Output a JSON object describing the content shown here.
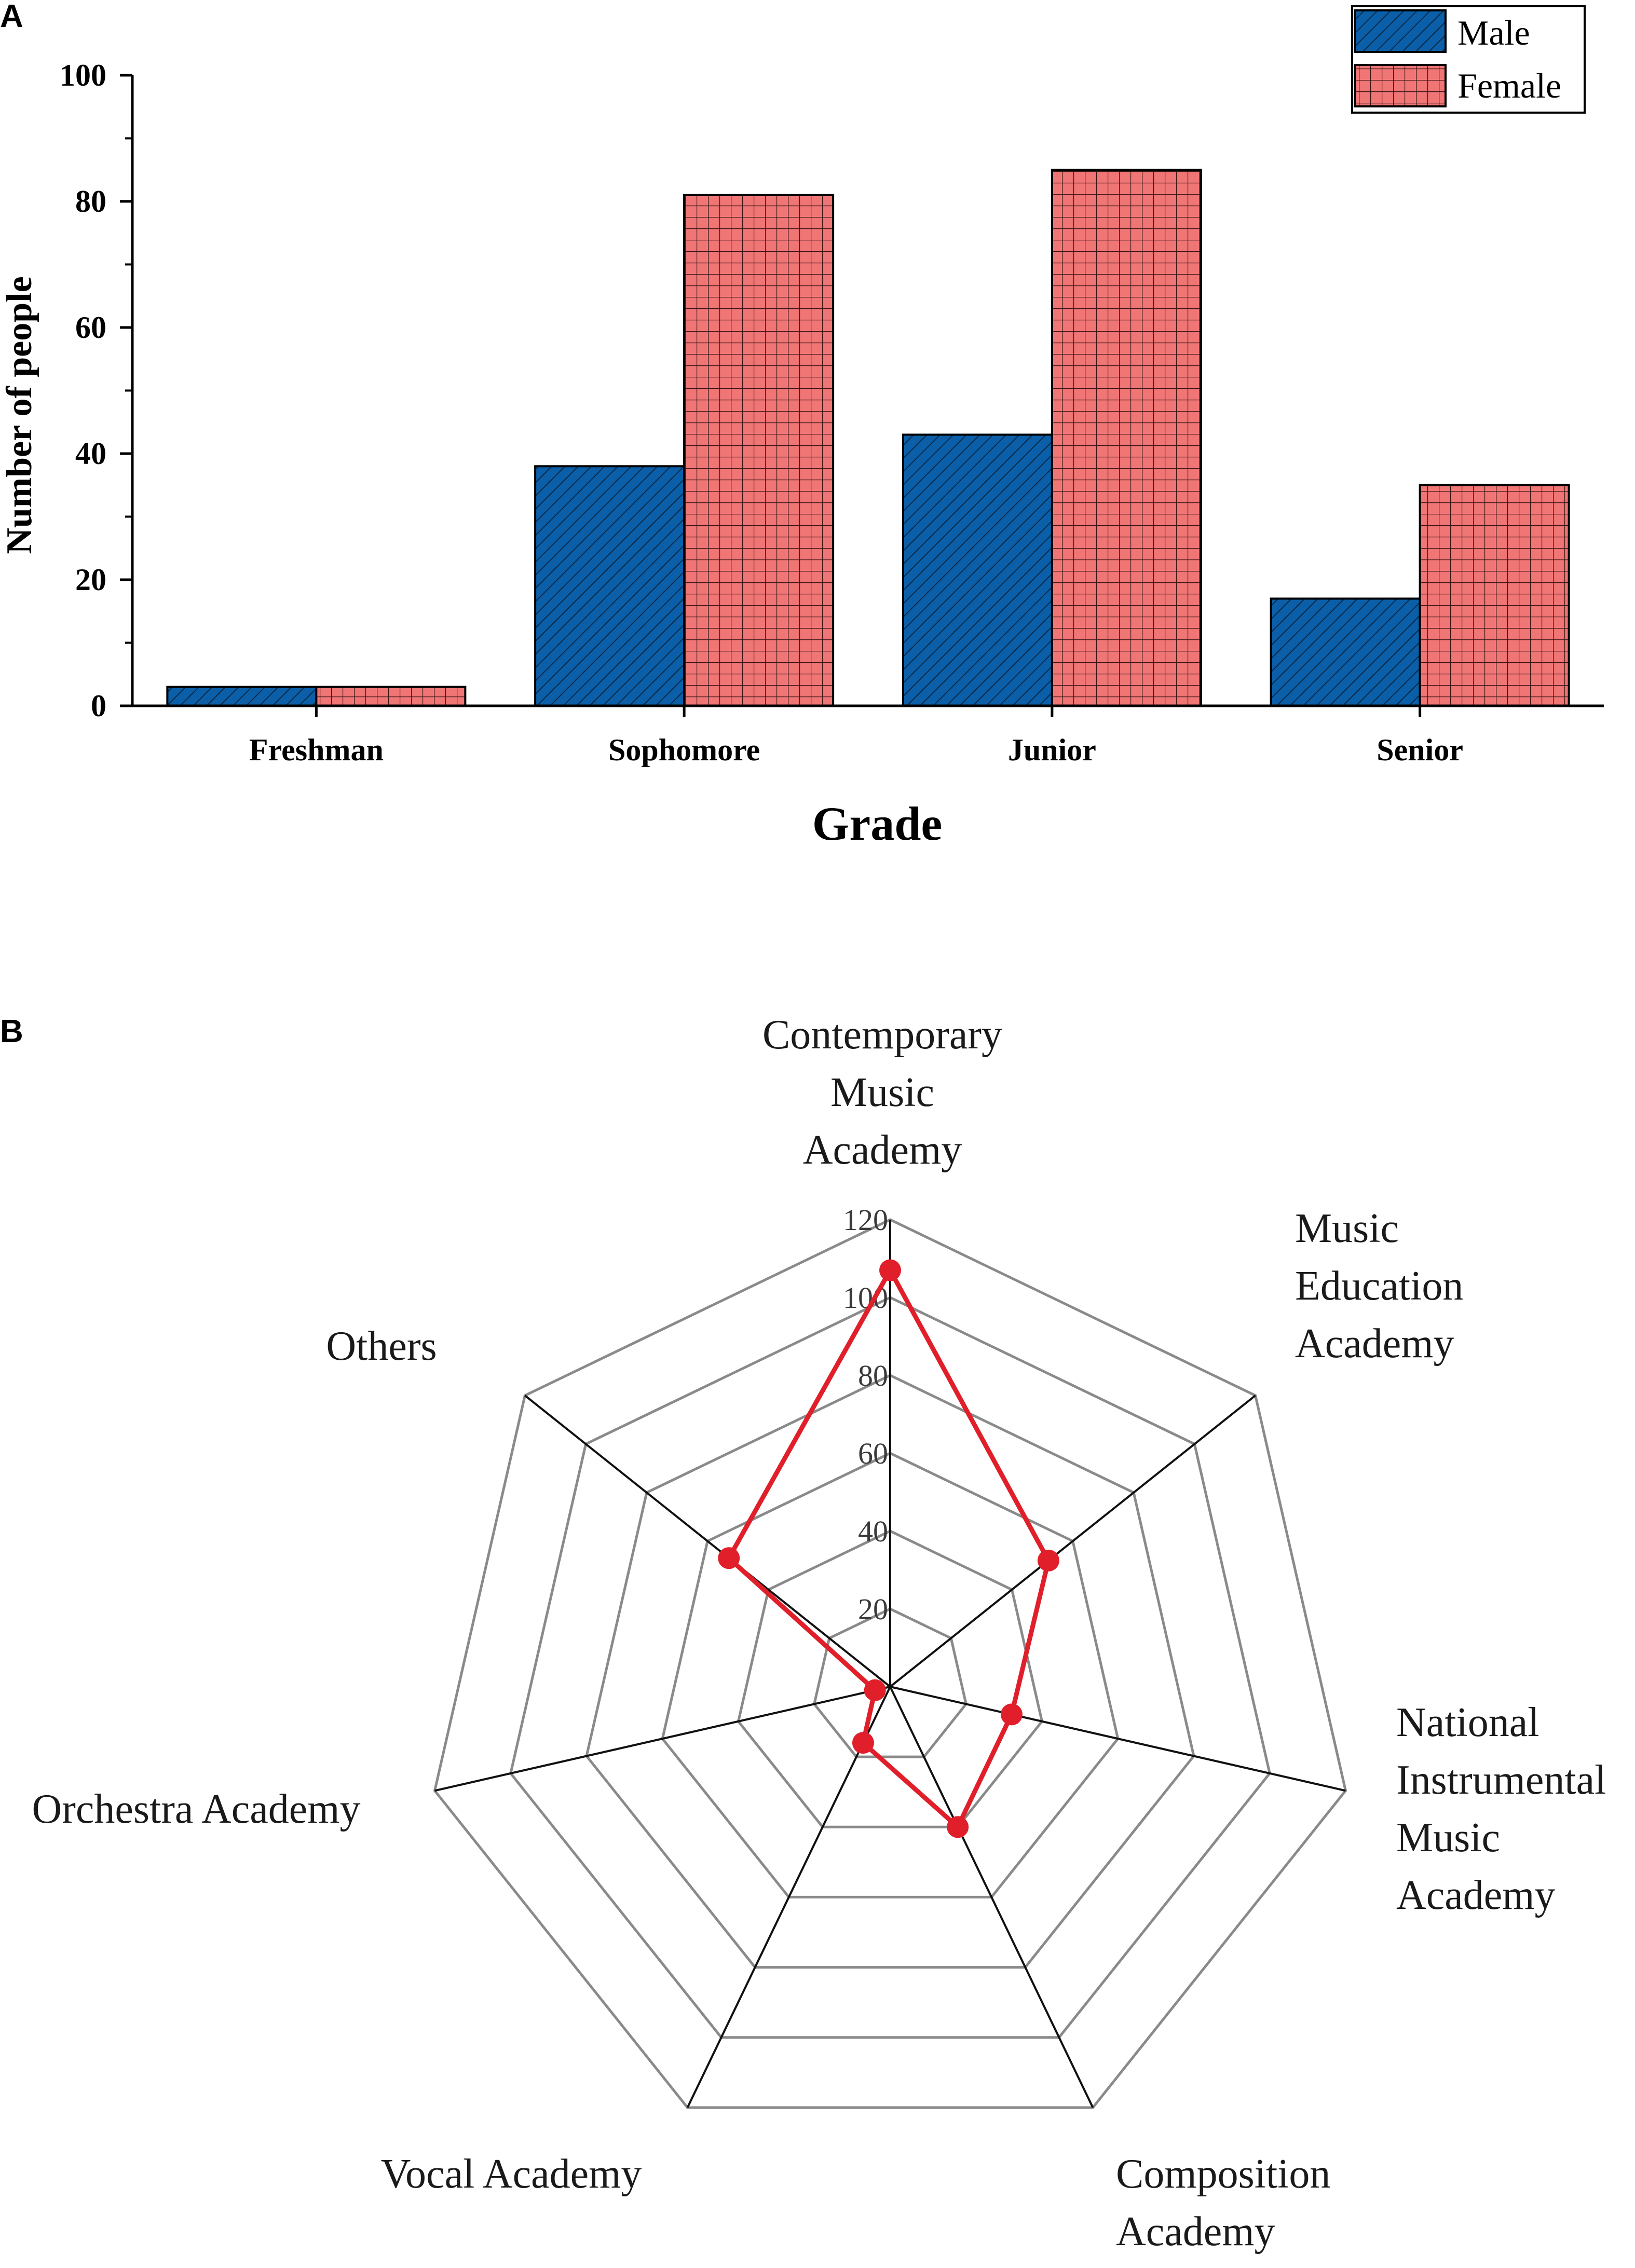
{
  "panels": {
    "a_label": "A",
    "b_label": "B"
  },
  "colors": {
    "male": "#0b5fa8",
    "female": "#f07575",
    "radar_line": "#e01f2a",
    "radar_grid": "#8a8a8a"
  },
  "chart_data": [
    {
      "type": "bar",
      "title": "",
      "xlabel": "Grade",
      "ylabel": "Number of people",
      "categories": [
        "Freshman",
        "Sophomore",
        "Junior",
        "Senior"
      ],
      "series": [
        {
          "name": "Male",
          "values": [
            3,
            38,
            43,
            17
          ],
          "pattern": "hatch"
        },
        {
          "name": "Female",
          "values": [
            3,
            81,
            85,
            35
          ],
          "pattern": "grid"
        }
      ],
      "ylim": [
        0,
        100
      ],
      "yticks": [
        "0",
        "20",
        "40",
        "60",
        "80",
        "100"
      ],
      "legend_position": "top-right"
    },
    {
      "type": "radar",
      "title": "",
      "axes": [
        "Contemporary Music Academy",
        "Music Education Academy",
        "National Instrumental Music Academy",
        "Composition Academy",
        "Vocal Academy",
        "Orchestra Academy",
        "Others"
      ],
      "label_lines": [
        [
          "Contemporary",
          "Music",
          "Academy"
        ],
        [
          "Music",
          "Education",
          "Academy"
        ],
        [
          "National",
          "Instrumental",
          "Music",
          "Academy"
        ],
        [
          "Composition",
          "Academy"
        ],
        [
          "Vocal Academy"
        ],
        [
          "Orchestra Academy"
        ],
        [
          "Others"
        ]
      ],
      "values": [
        107,
        52,
        32,
        40,
        16,
        4,
        53
      ],
      "rlim": [
        0,
        120
      ],
      "rticks": [
        "20",
        "40",
        "60",
        "80",
        "100",
        "120"
      ]
    }
  ]
}
